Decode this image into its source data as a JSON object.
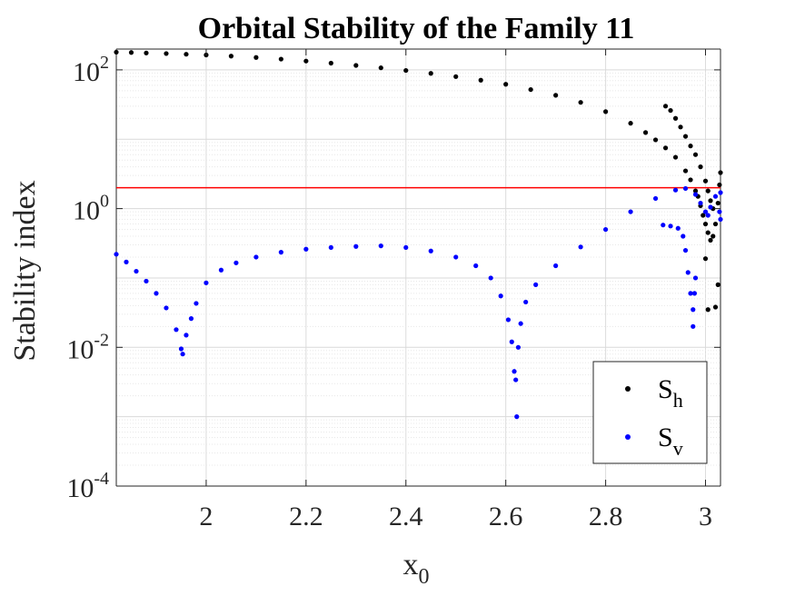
{
  "chart_data": {
    "type": "scatter",
    "title": "Orbital Stability of the Family 11",
    "xlabel": "x",
    "xlabel_sub": "0",
    "ylabel": "Stability index",
    "xlim": [
      1.82,
      3.03
    ],
    "ylim_log10": [
      -4,
      2.3
    ],
    "yscale": "log",
    "grid": "on (major and minor)",
    "legend_position": "bottom-right",
    "x_ticks": [
      "2",
      "2.2",
      "2.4",
      "2.6",
      "2.8",
      "3"
    ],
    "x_tick_values": [
      2,
      2.2,
      2.4,
      2.6,
      2.8,
      3
    ],
    "y_ticks": [
      {
        "base": "10",
        "exp": "2",
        "value": 100
      },
      {
        "base": "10",
        "exp": "0",
        "value": 1
      },
      {
        "base": "10",
        "exp": "-2",
        "value": 0.01
      },
      {
        "base": "10",
        "exp": "-4",
        "value": 0.0001
      }
    ],
    "reference_line": {
      "y": 2,
      "color": "#ff0000"
    },
    "series": [
      {
        "name": "S",
        "name_sub": "h",
        "color": "#000000",
        "points": [
          [
            1.82,
            180
          ],
          [
            1.85,
            178
          ],
          [
            1.88,
            175
          ],
          [
            1.92,
            172
          ],
          [
            1.96,
            168
          ],
          [
            2.0,
            164
          ],
          [
            2.05,
            158
          ],
          [
            2.1,
            151
          ],
          [
            2.15,
            143
          ],
          [
            2.2,
            134
          ],
          [
            2.25,
            125
          ],
          [
            2.3,
            116
          ],
          [
            2.35,
            107
          ],
          [
            2.4,
            98
          ],
          [
            2.45,
            89
          ],
          [
            2.5,
            80
          ],
          [
            2.55,
            71
          ],
          [
            2.6,
            62
          ],
          [
            2.65,
            52
          ],
          [
            2.7,
            43
          ],
          [
            2.75,
            34
          ],
          [
            2.8,
            25
          ],
          [
            2.85,
            17
          ],
          [
            2.88,
            12.5
          ],
          [
            2.9,
            9.8
          ],
          [
            2.92,
            7.5
          ],
          [
            2.94,
            5.5
          ],
          [
            2.96,
            3.5
          ],
          [
            2.97,
            2.6
          ],
          [
            2.98,
            1.8
          ],
          [
            2.985,
            1.5
          ],
          [
            2.99,
            1.1
          ],
          [
            2.92,
            30
          ],
          [
            2.93,
            26
          ],
          [
            2.94,
            20
          ],
          [
            2.95,
            15
          ],
          [
            2.96,
            11
          ],
          [
            2.97,
            8
          ],
          [
            2.98,
            6
          ],
          [
            2.99,
            4
          ],
          [
            3.0,
            2.5
          ],
          [
            3.005,
            1.8
          ],
          [
            3.01,
            1.3
          ],
          [
            3.015,
            1.0
          ],
          [
            2.995,
            0.8
          ],
          [
            3.0,
            0.6
          ],
          [
            3.005,
            0.45
          ],
          [
            3.01,
            0.35
          ],
          [
            3.015,
            0.4
          ],
          [
            3.02,
            0.6
          ],
          [
            3.025,
            1.2
          ],
          [
            3.028,
            2.2
          ],
          [
            3.03,
            3.3
          ],
          [
            3.0,
            0.19
          ],
          [
            3.025,
            0.08
          ],
          [
            3.005,
            0.035
          ],
          [
            3.02,
            0.038
          ]
        ]
      },
      {
        "name": "S",
        "name_sub": "v",
        "color": "#0000ff",
        "points": [
          [
            1.82,
            0.22
          ],
          [
            1.84,
            0.17
          ],
          [
            1.86,
            0.125
          ],
          [
            1.88,
            0.09
          ],
          [
            1.9,
            0.06
          ],
          [
            1.92,
            0.037
          ],
          [
            1.94,
            0.018
          ],
          [
            1.95,
            0.0095
          ],
          [
            1.953,
            0.008
          ],
          [
            1.96,
            0.015
          ],
          [
            1.97,
            0.026
          ],
          [
            1.98,
            0.043
          ],
          [
            2.0,
            0.085
          ],
          [
            2.03,
            0.13
          ],
          [
            2.06,
            0.165
          ],
          [
            2.1,
            0.2
          ],
          [
            2.15,
            0.235
          ],
          [
            2.2,
            0.26
          ],
          [
            2.25,
            0.275
          ],
          [
            2.3,
            0.285
          ],
          [
            2.35,
            0.29
          ],
          [
            2.4,
            0.275
          ],
          [
            2.45,
            0.245
          ],
          [
            2.5,
            0.2
          ],
          [
            2.54,
            0.15
          ],
          [
            2.57,
            0.1
          ],
          [
            2.59,
            0.055
          ],
          [
            2.605,
            0.025
          ],
          [
            2.612,
            0.012
          ],
          [
            2.617,
            0.0045
          ],
          [
            2.62,
            0.0034
          ],
          [
            2.622,
            0.001
          ],
          [
            2.625,
            0.01
          ],
          [
            2.63,
            0.022
          ],
          [
            2.64,
            0.045
          ],
          [
            2.66,
            0.08
          ],
          [
            2.7,
            0.15
          ],
          [
            2.75,
            0.28
          ],
          [
            2.8,
            0.5
          ],
          [
            2.85,
            0.9
          ],
          [
            2.9,
            1.4
          ],
          [
            2.94,
            1.85
          ],
          [
            2.96,
            1.95
          ],
          [
            2.98,
            1.6
          ],
          [
            2.99,
            1.2
          ],
          [
            3.0,
            0.9
          ],
          [
            3.005,
            0.8
          ],
          [
            3.01,
            1.05
          ],
          [
            3.02,
            1.5
          ],
          [
            3.03,
            1.7
          ],
          [
            2.915,
            0.58
          ],
          [
            2.93,
            0.56
          ],
          [
            2.945,
            0.52
          ],
          [
            2.955,
            0.4
          ],
          [
            2.96,
            0.25
          ],
          [
            2.965,
            0.12
          ],
          [
            2.97,
            0.06
          ],
          [
            2.975,
            0.035
          ],
          [
            2.978,
            0.06
          ],
          [
            2.98,
            0.1
          ],
          [
            3.03,
            0.7
          ],
          [
            3.028,
            0.9
          ],
          [
            2.975,
            0.02
          ]
        ]
      }
    ]
  }
}
